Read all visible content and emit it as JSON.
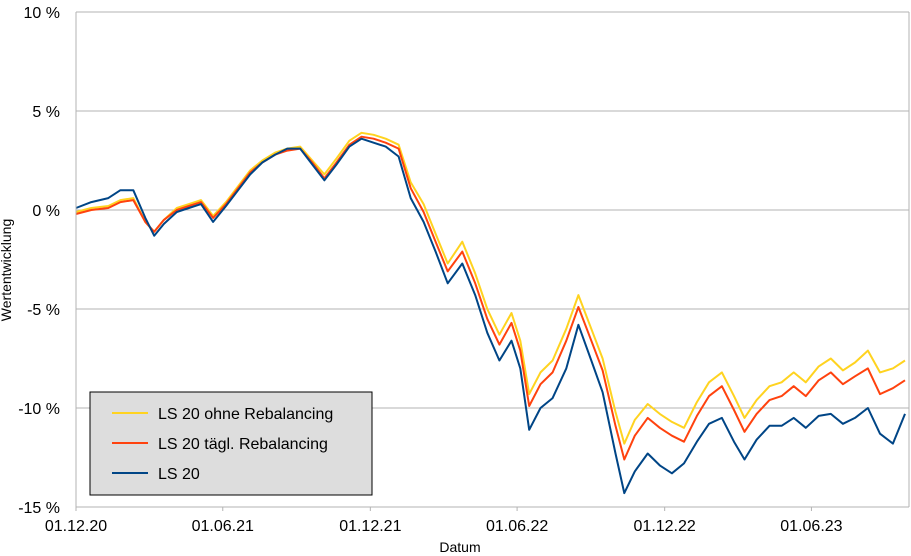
{
  "chart_data": {
    "type": "line",
    "xlabel": "Datum",
    "ylabel": "Wertentwicklung",
    "x_ticks": [
      "01.12.20",
      "01.06.21",
      "01.12.21",
      "01.06.22",
      "01.12.22",
      "01.06.23"
    ],
    "y_ticks": [
      "10 %",
      "5 %",
      "0 %",
      "-5 %",
      "-10 %",
      "-15 %"
    ],
    "ylim": [
      -15,
      10
    ],
    "xlim": [
      "2020-12-01",
      "2023-09-30"
    ],
    "grid": "horizontal",
    "legend_position": "bottom-left",
    "legend": [
      "LS 20 ohne Rebalancing",
      "LS 20 tägl. Rebalancing",
      "LS 20"
    ],
    "series": [
      {
        "name": "LS 20 ohne Rebalancing",
        "color": "#ffd320",
        "points": [
          [
            "2020-12-01",
            -0.1
          ],
          [
            "2020-12-20",
            0.1
          ],
          [
            "2021-01-10",
            0.2
          ],
          [
            "2021-01-25",
            0.5
          ],
          [
            "2021-02-10",
            0.6
          ],
          [
            "2021-02-25",
            -0.6
          ],
          [
            "2021-03-08",
            -1.1
          ],
          [
            "2021-03-20",
            -0.5
          ],
          [
            "2021-04-05",
            0.1
          ],
          [
            "2021-04-20",
            0.3
          ],
          [
            "2021-05-05",
            0.5
          ],
          [
            "2021-05-20",
            -0.3
          ],
          [
            "2021-06-05",
            0.4
          ],
          [
            "2021-06-20",
            1.2
          ],
          [
            "2021-07-05",
            2.0
          ],
          [
            "2021-07-20",
            2.5
          ],
          [
            "2021-08-05",
            2.9
          ],
          [
            "2021-08-20",
            3.1
          ],
          [
            "2021-09-05",
            3.2
          ],
          [
            "2021-09-20",
            2.5
          ],
          [
            "2021-10-05",
            1.8
          ],
          [
            "2021-10-20",
            2.6
          ],
          [
            "2021-11-05",
            3.5
          ],
          [
            "2021-11-20",
            3.9
          ],
          [
            "2021-12-05",
            3.8
          ],
          [
            "2021-12-20",
            3.6
          ],
          [
            "2022-01-05",
            3.3
          ],
          [
            "2022-01-20",
            1.4
          ],
          [
            "2022-02-05",
            0.3
          ],
          [
            "2022-02-20",
            -1.2
          ],
          [
            "2022-03-07",
            -2.7
          ],
          [
            "2022-03-25",
            -1.6
          ],
          [
            "2022-04-10",
            -3.2
          ],
          [
            "2022-04-25",
            -5.0
          ],
          [
            "2022-05-10",
            -6.3
          ],
          [
            "2022-05-25",
            -5.2
          ],
          [
            "2022-06-05",
            -6.6
          ],
          [
            "2022-06-16",
            -9.3
          ],
          [
            "2022-06-30",
            -8.2
          ],
          [
            "2022-07-15",
            -7.6
          ],
          [
            "2022-08-01",
            -6.0
          ],
          [
            "2022-08-16",
            -4.3
          ],
          [
            "2022-09-01",
            -6.0
          ],
          [
            "2022-09-15",
            -7.5
          ],
          [
            "2022-10-01",
            -10.2
          ],
          [
            "2022-10-12",
            -11.8
          ],
          [
            "2022-10-25",
            -10.6
          ],
          [
            "2022-11-10",
            -9.8
          ],
          [
            "2022-11-25",
            -10.3
          ],
          [
            "2022-12-10",
            -10.7
          ],
          [
            "2022-12-25",
            -11.0
          ],
          [
            "2023-01-10",
            -9.7
          ],
          [
            "2023-01-25",
            -8.7
          ],
          [
            "2023-02-10",
            -8.2
          ],
          [
            "2023-02-25",
            -9.4
          ],
          [
            "2023-03-10",
            -10.5
          ],
          [
            "2023-03-25",
            -9.6
          ],
          [
            "2023-04-10",
            -8.9
          ],
          [
            "2023-04-25",
            -8.7
          ],
          [
            "2023-05-10",
            -8.2
          ],
          [
            "2023-05-25",
            -8.7
          ],
          [
            "2023-06-10",
            -7.9
          ],
          [
            "2023-06-25",
            -7.5
          ],
          [
            "2023-07-10",
            -8.1
          ],
          [
            "2023-07-25",
            -7.7
          ],
          [
            "2023-08-10",
            -7.1
          ],
          [
            "2023-08-25",
            -8.2
          ],
          [
            "2023-09-10",
            -8.0
          ],
          [
            "2023-09-25",
            -7.6
          ]
        ]
      },
      {
        "name": "LS 20 tägl. Rebalancing",
        "color": "#ff420e",
        "points": [
          [
            "2020-12-01",
            -0.2
          ],
          [
            "2020-12-20",
            0.0
          ],
          [
            "2021-01-10",
            0.1
          ],
          [
            "2021-01-25",
            0.4
          ],
          [
            "2021-02-10",
            0.5
          ],
          [
            "2021-02-25",
            -0.6
          ],
          [
            "2021-03-08",
            -1.1
          ],
          [
            "2021-03-20",
            -0.5
          ],
          [
            "2021-04-05",
            0.0
          ],
          [
            "2021-04-20",
            0.2
          ],
          [
            "2021-05-05",
            0.4
          ],
          [
            "2021-05-20",
            -0.4
          ],
          [
            "2021-06-05",
            0.3
          ],
          [
            "2021-06-20",
            1.1
          ],
          [
            "2021-07-05",
            1.9
          ],
          [
            "2021-07-20",
            2.4
          ],
          [
            "2021-08-05",
            2.8
          ],
          [
            "2021-08-20",
            3.0
          ],
          [
            "2021-09-05",
            3.1
          ],
          [
            "2021-09-20",
            2.4
          ],
          [
            "2021-10-05",
            1.6
          ],
          [
            "2021-10-20",
            2.4
          ],
          [
            "2021-11-05",
            3.3
          ],
          [
            "2021-11-20",
            3.7
          ],
          [
            "2021-12-05",
            3.6
          ],
          [
            "2021-12-20",
            3.4
          ],
          [
            "2022-01-05",
            3.1
          ],
          [
            "2022-01-20",
            1.1
          ],
          [
            "2022-02-05",
            -0.1
          ],
          [
            "2022-02-20",
            -1.6
          ],
          [
            "2022-03-07",
            -3.1
          ],
          [
            "2022-03-25",
            -2.1
          ],
          [
            "2022-04-10",
            -3.7
          ],
          [
            "2022-04-25",
            -5.5
          ],
          [
            "2022-05-10",
            -6.8
          ],
          [
            "2022-05-25",
            -5.7
          ],
          [
            "2022-06-05",
            -7.1
          ],
          [
            "2022-06-16",
            -9.9
          ],
          [
            "2022-06-30",
            -8.8
          ],
          [
            "2022-07-15",
            -8.2
          ],
          [
            "2022-08-01",
            -6.6
          ],
          [
            "2022-08-16",
            -4.9
          ],
          [
            "2022-09-01",
            -6.6
          ],
          [
            "2022-09-15",
            -8.1
          ],
          [
            "2022-10-01",
            -10.9
          ],
          [
            "2022-10-12",
            -12.6
          ],
          [
            "2022-10-25",
            -11.4
          ],
          [
            "2022-11-10",
            -10.5
          ],
          [
            "2022-11-25",
            -11.0
          ],
          [
            "2022-12-10",
            -11.4
          ],
          [
            "2022-12-25",
            -11.7
          ],
          [
            "2023-01-10",
            -10.4
          ],
          [
            "2023-01-25",
            -9.4
          ],
          [
            "2023-02-10",
            -8.9
          ],
          [
            "2023-02-25",
            -10.1
          ],
          [
            "2023-03-10",
            -11.2
          ],
          [
            "2023-03-25",
            -10.3
          ],
          [
            "2023-04-10",
            -9.6
          ],
          [
            "2023-04-25",
            -9.4
          ],
          [
            "2023-05-10",
            -8.9
          ],
          [
            "2023-05-25",
            -9.4
          ],
          [
            "2023-06-10",
            -8.6
          ],
          [
            "2023-06-25",
            -8.2
          ],
          [
            "2023-07-10",
            -8.8
          ],
          [
            "2023-07-25",
            -8.4
          ],
          [
            "2023-08-10",
            -8.0
          ],
          [
            "2023-08-25",
            -9.3
          ],
          [
            "2023-09-10",
            -9.0
          ],
          [
            "2023-09-25",
            -8.6
          ]
        ]
      },
      {
        "name": "LS 20",
        "color": "#004586",
        "points": [
          [
            "2020-12-01",
            0.1
          ],
          [
            "2020-12-20",
            0.4
          ],
          [
            "2021-01-10",
            0.6
          ],
          [
            "2021-01-25",
            1.0
          ],
          [
            "2021-02-10",
            1.0
          ],
          [
            "2021-02-25",
            -0.4
          ],
          [
            "2021-03-08",
            -1.3
          ],
          [
            "2021-03-20",
            -0.7
          ],
          [
            "2021-04-05",
            -0.1
          ],
          [
            "2021-04-20",
            0.1
          ],
          [
            "2021-05-05",
            0.3
          ],
          [
            "2021-05-20",
            -0.6
          ],
          [
            "2021-06-05",
            0.2
          ],
          [
            "2021-06-20",
            1.0
          ],
          [
            "2021-07-05",
            1.8
          ],
          [
            "2021-07-20",
            2.4
          ],
          [
            "2021-08-05",
            2.8
          ],
          [
            "2021-08-20",
            3.1
          ],
          [
            "2021-09-05",
            3.1
          ],
          [
            "2021-09-20",
            2.3
          ],
          [
            "2021-10-05",
            1.5
          ],
          [
            "2021-10-20",
            2.3
          ],
          [
            "2021-11-05",
            3.2
          ],
          [
            "2021-11-20",
            3.6
          ],
          [
            "2021-12-05",
            3.4
          ],
          [
            "2021-12-20",
            3.2
          ],
          [
            "2022-01-05",
            2.7
          ],
          [
            "2022-01-20",
            0.6
          ],
          [
            "2022-02-05",
            -0.6
          ],
          [
            "2022-02-20",
            -2.1
          ],
          [
            "2022-03-07",
            -3.7
          ],
          [
            "2022-03-25",
            -2.7
          ],
          [
            "2022-04-10",
            -4.3
          ],
          [
            "2022-04-25",
            -6.2
          ],
          [
            "2022-05-10",
            -7.6
          ],
          [
            "2022-05-25",
            -6.6
          ],
          [
            "2022-06-05",
            -8.0
          ],
          [
            "2022-06-16",
            -11.1
          ],
          [
            "2022-06-30",
            -10.0
          ],
          [
            "2022-07-15",
            -9.5
          ],
          [
            "2022-08-01",
            -8.0
          ],
          [
            "2022-08-16",
            -5.8
          ],
          [
            "2022-09-01",
            -7.6
          ],
          [
            "2022-09-15",
            -9.2
          ],
          [
            "2022-10-01",
            -12.3
          ],
          [
            "2022-10-12",
            -14.3
          ],
          [
            "2022-10-25",
            -13.2
          ],
          [
            "2022-11-10",
            -12.3
          ],
          [
            "2022-11-25",
            -12.9
          ],
          [
            "2022-12-10",
            -13.3
          ],
          [
            "2022-12-25",
            -12.8
          ],
          [
            "2023-01-10",
            -11.7
          ],
          [
            "2023-01-25",
            -10.8
          ],
          [
            "2023-02-10",
            -10.5
          ],
          [
            "2023-02-25",
            -11.7
          ],
          [
            "2023-03-10",
            -12.6
          ],
          [
            "2023-03-25",
            -11.6
          ],
          [
            "2023-04-10",
            -10.9
          ],
          [
            "2023-04-25",
            -10.9
          ],
          [
            "2023-05-10",
            -10.5
          ],
          [
            "2023-05-25",
            -11.0
          ],
          [
            "2023-06-10",
            -10.4
          ],
          [
            "2023-06-25",
            -10.3
          ],
          [
            "2023-07-10",
            -10.8
          ],
          [
            "2023-07-25",
            -10.5
          ],
          [
            "2023-08-10",
            -10.0
          ],
          [
            "2023-08-25",
            -11.3
          ],
          [
            "2023-09-10",
            -11.8
          ],
          [
            "2023-09-25",
            -10.3
          ]
        ]
      }
    ]
  }
}
